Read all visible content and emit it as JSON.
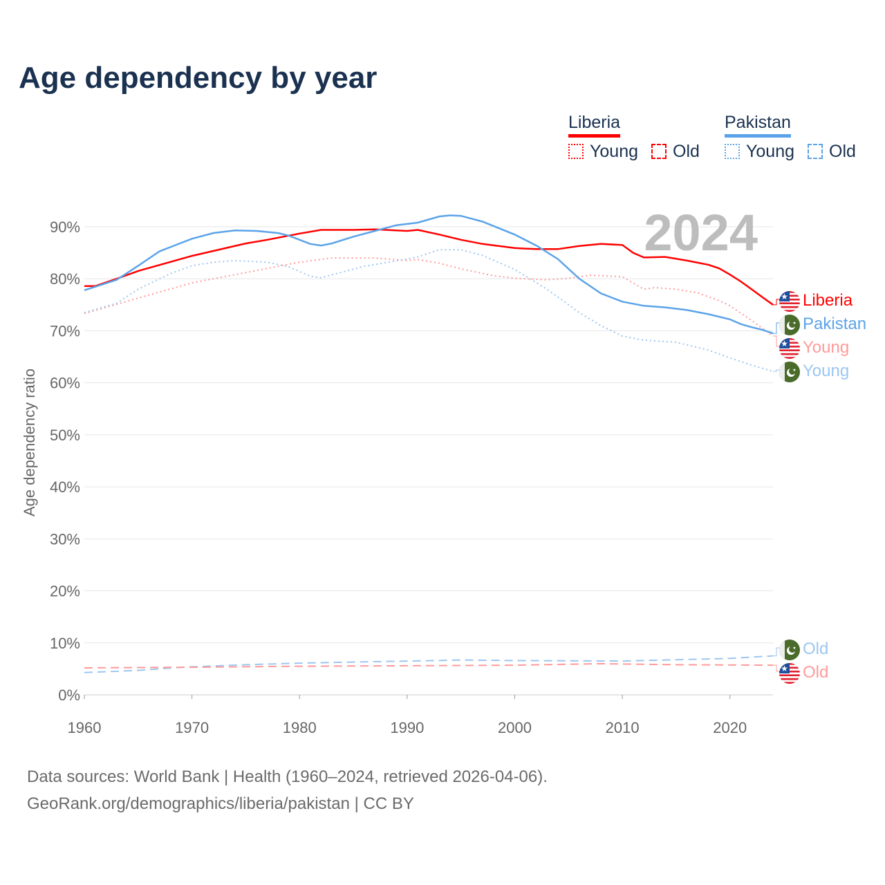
{
  "title": "Age dependency by year",
  "legend": {
    "countries": [
      {
        "name": "Liberia",
        "color": "#ff0000",
        "young_label": "Young",
        "old_label": "Old"
      },
      {
        "name": "Pakistan",
        "color": "#5ba3e8",
        "young_label": "Young",
        "old_label": "Old"
      }
    ]
  },
  "year_badge": "2024",
  "footer": {
    "sources": "Data sources: World Bank | Health (1960–2024, retrieved 2026-04-06).",
    "link": "GeoRank.org/demographics/liberia/pakistan | CC BY"
  },
  "chart_data": {
    "type": "line",
    "title": "Age dependency by year",
    "xlabel": "",
    "ylabel": "Age dependency ratio",
    "xlim": [
      1960,
      2024
    ],
    "ylim": [
      0,
      90
    ],
    "x_ticks": [
      "1960",
      "1970",
      "1980",
      "1990",
      "2000",
      "2010",
      "2020"
    ],
    "y_ticks": [
      "0%",
      "10%",
      "20%",
      "30%",
      "40%",
      "50%",
      "60%",
      "70%",
      "80%",
      "90%"
    ],
    "grid": true,
    "series": [
      {
        "name": "Liberia",
        "label": "Liberia",
        "kind": "total",
        "color": "#ff0000",
        "x": [
          1960,
          1961,
          1963,
          1965,
          1970,
          1975,
          1977,
          1980,
          1982,
          1985,
          1987,
          1990,
          1991,
          1993,
          1995,
          1997,
          2000,
          2002,
          2004,
          2006,
          2008,
          2010,
          2011,
          2012,
          2014,
          2016,
          2018,
          2019,
          2020,
          2021,
          2022,
          2023,
          2024
        ],
        "y": [
          78.6,
          78.6,
          80,
          81.5,
          84.4,
          86.8,
          87.5,
          88.7,
          89.4,
          89.4,
          89.5,
          89.2,
          89.4,
          88.5,
          87.5,
          86.7,
          85.9,
          85.7,
          85.7,
          86.3,
          86.7,
          86.5,
          85,
          84.1,
          84.2,
          83.5,
          82.7,
          82,
          80.8,
          79.5,
          78,
          76.5,
          75
        ]
      },
      {
        "name": "Pakistan",
        "label": "Pakistan",
        "kind": "total",
        "color": "#5ba3e8",
        "x": [
          1960,
          1963,
          1965,
          1967,
          1970,
          1972,
          1974,
          1976,
          1978,
          1979,
          1980,
          1981,
          1982,
          1983,
          1985,
          1987,
          1989,
          1991,
          1993,
          1994,
          1995,
          1997,
          2000,
          2002,
          2004,
          2006,
          2008,
          2010,
          2012,
          2014,
          2016,
          2018,
          2020,
          2021,
          2022,
          2023,
          2024
        ],
        "y": [
          77.8,
          79.8,
          82.5,
          85.3,
          87.7,
          88.8,
          89.3,
          89.2,
          88.8,
          88.3,
          87.5,
          86.7,
          86.4,
          86.8,
          88.1,
          89.2,
          90.3,
          90.8,
          92.0,
          92.2,
          92.1,
          91.0,
          88.5,
          86.4,
          83.8,
          80.0,
          77.2,
          75.6,
          74.8,
          74.5,
          74.0,
          73.2,
          72.2,
          71.3,
          70.7,
          70.2,
          69.5
        ]
      },
      {
        "name": "Liberia",
        "label": "Young",
        "kind": "young",
        "color": "#ff9a9a",
        "x": [
          1960,
          1965,
          1970,
          1975,
          1980,
          1983,
          1987,
          1990,
          1991,
          1993,
          1995,
          1998,
          2000,
          2003,
          2005,
          2007,
          2010,
          2012,
          2013,
          2015,
          2017,
          2019,
          2020,
          2022,
          2024
        ],
        "y": [
          73.3,
          76.3,
          79.2,
          81.2,
          83.2,
          84,
          84,
          83.5,
          83.7,
          83,
          81.9,
          80.6,
          80.1,
          79.8,
          80.1,
          80.7,
          80.4,
          78,
          78.3,
          78,
          77.3,
          75.8,
          74.8,
          72,
          69
        ]
      },
      {
        "name": "Pakistan",
        "label": "Young",
        "kind": "young",
        "color": "#9cc6f0",
        "x": [
          1960,
          1963,
          1965,
          1968,
          1970,
          1972,
          1974,
          1977,
          1979,
          1981,
          1982,
          1984,
          1986,
          1988,
          1991,
          1993,
          1995,
          1997,
          2000,
          2003,
          2006,
          2008,
          2010,
          2012,
          2015,
          2018,
          2020,
          2022,
          2024
        ],
        "y": [
          73.5,
          75.3,
          78,
          81,
          82.5,
          83.2,
          83.5,
          83.2,
          82.3,
          80.5,
          80.2,
          81.3,
          82.4,
          83.1,
          84.2,
          85.6,
          85.6,
          84.5,
          81.8,
          78,
          73.5,
          71,
          69,
          68.2,
          67.8,
          66.3,
          64.8,
          63.4,
          62.2
        ]
      },
      {
        "name": "Pakistan",
        "label": "Old",
        "kind": "old",
        "color": "#9cc6f0",
        "x": [
          1960,
          1965,
          1969,
          1975,
          1980,
          1990,
          1995,
          2000,
          2010,
          2020,
          2024
        ],
        "y": [
          4.3,
          4.7,
          5.3,
          5.8,
          6.1,
          6.5,
          6.7,
          6.6,
          6.5,
          7.0,
          7.5
        ]
      },
      {
        "name": "Liberia",
        "label": "Old",
        "kind": "old",
        "color": "#ff9a9a",
        "x": [
          1960,
          1970,
          1980,
          1990,
          2000,
          2008,
          2015,
          2024
        ],
        "y": [
          5.2,
          5.3,
          5.5,
          5.6,
          5.7,
          6.0,
          5.8,
          5.7
        ]
      }
    ]
  }
}
